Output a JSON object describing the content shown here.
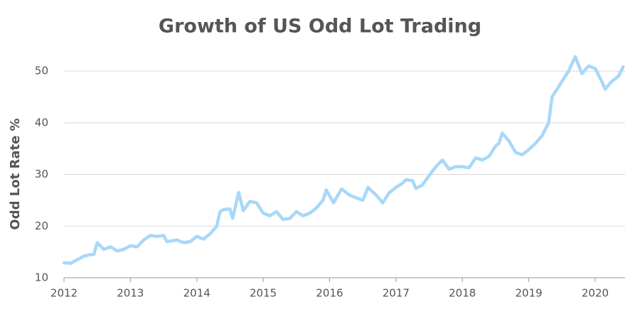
{
  "chart_data": {
    "type": "line",
    "title": "Growth of US Odd Lot Trading",
    "y_label": "Odd Lot Rate %",
    "x": [
      2012.0,
      2012.1,
      2012.2,
      2012.3,
      2012.4,
      2012.45,
      2012.5,
      2012.6,
      2012.7,
      2012.8,
      2012.9,
      2013.0,
      2013.1,
      2013.2,
      2013.3,
      2013.4,
      2013.5,
      2013.55,
      2013.7,
      2013.8,
      2013.9,
      2014.0,
      2014.1,
      2014.2,
      2014.3,
      2014.35,
      2014.4,
      2014.5,
      2014.54,
      2014.63,
      2014.7,
      2014.8,
      2014.9,
      2015.0,
      2015.1,
      2015.2,
      2015.3,
      2015.4,
      2015.5,
      2015.6,
      2015.7,
      2015.8,
      2015.9,
      2015.95,
      2016.06,
      2016.18,
      2016.3,
      2016.4,
      2016.5,
      2016.58,
      2016.7,
      2016.8,
      2016.9,
      2017.0,
      2017.1,
      2017.15,
      2017.25,
      2017.3,
      2017.4,
      2017.5,
      2017.6,
      2017.7,
      2017.8,
      2017.9,
      2018.0,
      2018.1,
      2018.2,
      2018.3,
      2018.4,
      2018.5,
      2018.55,
      2018.6,
      2018.7,
      2018.8,
      2018.9,
      2019.0,
      2019.1,
      2019.2,
      2019.3,
      2019.35,
      2019.4,
      2019.5,
      2019.6,
      2019.7,
      2019.8,
      2019.9,
      2020.0,
      2020.1,
      2020.15,
      2020.25,
      2020.35,
      2020.42
    ],
    "series": [
      {
        "name": "Odd Lot Rate",
        "color": "#a8d8f8",
        "values": [
          12.9,
          12.8,
          13.5,
          14.2,
          14.5,
          14.5,
          16.8,
          15.5,
          16.0,
          15.2,
          15.5,
          16.2,
          16.0,
          17.3,
          18.2,
          18.0,
          18.2,
          17.0,
          17.3,
          16.8,
          17.0,
          18.0,
          17.5,
          18.5,
          20.0,
          22.8,
          23.2,
          23.3,
          21.5,
          26.5,
          23.0,
          24.8,
          24.5,
          22.5,
          22.0,
          22.8,
          21.3,
          21.5,
          22.8,
          22.0,
          22.5,
          23.5,
          25.0,
          27.0,
          24.5,
          27.2,
          26.0,
          25.5,
          25.0,
          27.5,
          26.0,
          24.5,
          26.5,
          27.5,
          28.3,
          29.0,
          28.8,
          27.3,
          28.0,
          29.8,
          31.5,
          32.8,
          31.0,
          31.5,
          31.5,
          31.3,
          33.2,
          32.8,
          33.5,
          35.5,
          36.0,
          38.0,
          36.5,
          34.3,
          33.8,
          34.8,
          36.0,
          37.5,
          40.0,
          45.0,
          46.0,
          48.0,
          50.0,
          52.8,
          49.5,
          51.0,
          50.5,
          48.0,
          46.5,
          48.0,
          49.0,
          50.8
        ]
      }
    ],
    "xlim": [
      2012,
      2020.45
    ],
    "xticks": [
      2012,
      2013,
      2014,
      2015,
      2016,
      2017,
      2018,
      2019,
      2020
    ],
    "ylim": [
      10,
      54
    ],
    "yticks": [
      10,
      20,
      30,
      40,
      50
    ],
    "grid": true
  }
}
